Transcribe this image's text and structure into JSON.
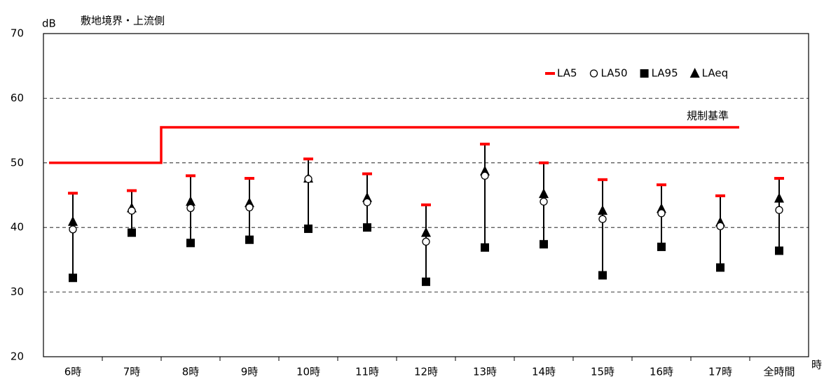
{
  "chart_data": {
    "type": "range-marker",
    "title": "敷地境界・上流側",
    "y_label": "dB",
    "x_label": "時",
    "categories": [
      "6時",
      "7時",
      "8時",
      "9時",
      "10時",
      "11時",
      "12時",
      "13時",
      "14時",
      "15時",
      "16時",
      "17時",
      "全時間"
    ],
    "series": [
      {
        "name": "LA5",
        "color": "#ff0000",
        "marker": "dash",
        "values": [
          45.3,
          45.7,
          48.0,
          47.6,
          50.6,
          48.3,
          43.5,
          52.9,
          50.0,
          47.4,
          46.6,
          44.9,
          47.6
        ]
      },
      {
        "name": "LA50",
        "color": "#ffffff",
        "marker": "circle",
        "values": [
          39.7,
          42.6,
          43.0,
          43.1,
          47.5,
          43.9,
          37.8,
          48.0,
          44.0,
          41.3,
          42.2,
          40.2,
          42.7
        ]
      },
      {
        "name": "LA95",
        "color": "#000000",
        "marker": "square",
        "values": [
          32.2,
          39.2,
          37.6,
          38.1,
          39.8,
          40.0,
          31.6,
          36.9,
          37.4,
          32.6,
          37.0,
          33.8,
          36.4
        ]
      },
      {
        "name": "LAeq",
        "color": "#000000",
        "marker": "triangle",
        "values": [
          40.9,
          43.0,
          44.0,
          43.8,
          47.6,
          44.6,
          39.2,
          48.7,
          45.2,
          42.6,
          42.9,
          40.8,
          44.5
        ]
      }
    ],
    "regulation": {
      "label": "規制基準",
      "color": "#ff0000",
      "values": [
        50,
        50,
        55.5,
        55.5,
        55.5,
        55.5,
        55.5,
        55.5,
        55.5,
        55.5,
        55.5,
        55.5,
        null
      ]
    },
    "ylim": [
      20,
      70
    ],
    "yticks": [
      20,
      30,
      40,
      50,
      60,
      70
    ],
    "grid": true,
    "legend": "top-right"
  }
}
